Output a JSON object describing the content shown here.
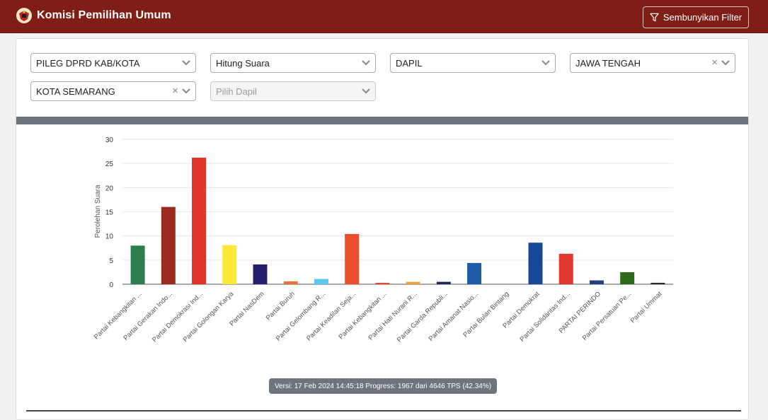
{
  "app": {
    "title": "Komisi Pemilihan Umum",
    "filter_button": "Sembunyikan Filter",
    "brand_color": "#7f1d16"
  },
  "filters": {
    "election": "PILEG DPRD KAB/KOTA",
    "mode": "Hitung Suara",
    "level": "DAPIL",
    "province": "JAWA TENGAH",
    "city": "KOTA SEMARANG",
    "dapil_placeholder": "Pilih Dapil"
  },
  "chart_data": {
    "type": "bar",
    "title": "",
    "xlabel": "",
    "ylabel": "Perolehan Suara",
    "ylim": [
      0,
      30
    ],
    "yticks": [
      0,
      5,
      10,
      15,
      20,
      25,
      30
    ],
    "grid": true,
    "categories": [
      "Partai Kebangkitan ...",
      "Partai Gerakan Indo...",
      "Partai Demokrasi Ind...",
      "Partai Golongan Karya",
      "Partai NasDem",
      "Partai Buruh",
      "Partai Gelombang R...",
      "Partai Keadilan Seja...",
      "Partai Kebangkitan ...",
      "Partai Hati Nurani R...",
      "Partai Garda Republi...",
      "Partai Amanat Nasio...",
      "Partai Bulan Bintang",
      "Partai Demokrat",
      "Partai Solidaritas Ind...",
      "PARTAI PERINDO",
      "Partai Persatuan Pe...",
      "Partai Ummat"
    ],
    "values": [
      8.0,
      16.0,
      26.2,
      8.1,
      4.1,
      0.6,
      1.1,
      10.4,
      0.3,
      0.5,
      0.5,
      4.4,
      0,
      8.6,
      6.3,
      0.8,
      2.5,
      0.3
    ],
    "colors": [
      "#2e7d4f",
      "#9c2a1e",
      "#e0352b",
      "#fde83a",
      "#23206b",
      "#e8733a",
      "#5bc8f2",
      "#ea4e2c",
      "#e34a3b",
      "#f0a03a",
      "#1b2a5a",
      "#1f5ca8",
      "#2f7d3a",
      "#16489a",
      "#e2362e",
      "#23407f",
      "#2d6a1c",
      "#2b2b2b"
    ]
  },
  "footer": {
    "version_text": "Versi: 17 Feb 2024 14:45:18 Progress: 1967 dari 4646 TPS (42.34%)"
  }
}
